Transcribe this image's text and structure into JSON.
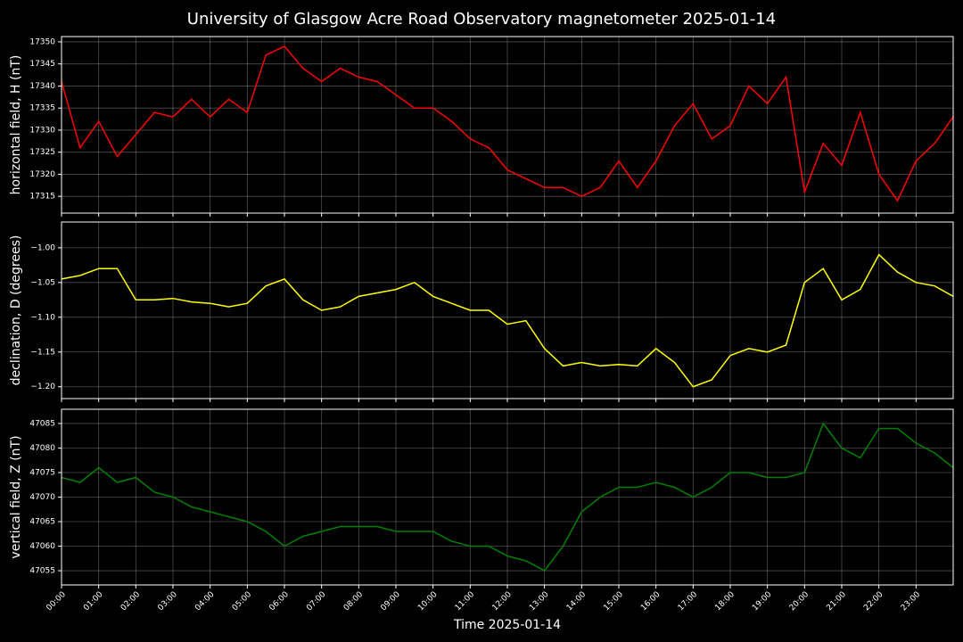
{
  "title": "University of Glasgow Acre Road Observatory magnetometer 2025-01-14",
  "chart_data": [
    {
      "type": "line",
      "ylabel": "horizontal field, H (nT)",
      "color": "#ff0000",
      "grid": true,
      "xlim": [
        0,
        24
      ],
      "ylim": [
        17311.2,
        17351.2
      ],
      "yticks": [
        17315,
        17320,
        17325,
        17330,
        17335,
        17340,
        17345,
        17350
      ],
      "x": [
        0,
        0.5,
        1,
        1.5,
        2,
        2.5,
        3,
        3.5,
        4,
        4.5,
        5,
        5.5,
        6,
        6.5,
        7,
        7.5,
        8,
        8.5,
        9,
        9.5,
        10,
        10.5,
        11,
        11.5,
        12,
        12.5,
        13,
        13.5,
        14,
        14.5,
        15,
        15.5,
        16,
        16.5,
        17,
        17.5,
        18,
        18.5,
        19,
        19.5,
        20,
        20.5,
        21,
        21.5,
        22,
        22.5,
        23,
        23.5,
        24
      ],
      "values": [
        17341,
        17326,
        17332,
        17324,
        17329,
        17334,
        17333,
        17337,
        17333,
        17337,
        17334,
        17347,
        17349,
        17344,
        17341,
        17344,
        17342,
        17341,
        17338,
        17335,
        17335,
        17332,
        17328,
        17326,
        17321,
        17319,
        17317,
        17317,
        17315,
        17317,
        17323,
        17317,
        17323,
        17331,
        17336,
        17328,
        17331,
        17340,
        17336,
        17342,
        17316,
        17327,
        17322,
        17334,
        17320,
        17314,
        17323,
        17327,
        17333
      ]
    },
    {
      "type": "line",
      "ylabel": "declination, D (degrees)",
      "color": "#ffff00",
      "grid": true,
      "xlim": [
        0,
        24
      ],
      "ylim": [
        -1.217,
        -0.963
      ],
      "yticks": [
        {
          "value": -1.2,
          "label": "−1.20"
        },
        {
          "value": -1.15,
          "label": "−1.15"
        },
        {
          "value": -1.1,
          "label": "−1.10"
        },
        {
          "value": -1.05,
          "label": "−1.05"
        },
        {
          "value": -1.0,
          "label": "−1.00"
        }
      ],
      "x": [
        0,
        0.5,
        1,
        1.5,
        2,
        2.5,
        3,
        3.5,
        4,
        4.5,
        5,
        5.5,
        6,
        6.5,
        7,
        7.5,
        8,
        8.5,
        9,
        9.5,
        10,
        10.5,
        11,
        11.5,
        12,
        12.5,
        13,
        13.5,
        14,
        14.5,
        15,
        15.5,
        16,
        16.5,
        17,
        17.5,
        18,
        18.5,
        19,
        19.5,
        20,
        20.5,
        21,
        21.5,
        22,
        22.5,
        23,
        23.5,
        24
      ],
      "values": [
        -1.045,
        -1.04,
        -1.03,
        -1.03,
        -1.075,
        -1.075,
        -1.073,
        -1.078,
        -1.08,
        -1.085,
        -1.08,
        -1.055,
        -1.045,
        -1.075,
        -1.09,
        -1.085,
        -1.07,
        -1.065,
        -1.06,
        -1.05,
        -1.07,
        -1.08,
        -1.09,
        -1.09,
        -1.11,
        -1.105,
        -1.145,
        -1.17,
        -1.165,
        -1.17,
        -1.168,
        -1.17,
        -1.145,
        -1.165,
        -1.2,
        -1.19,
        -1.155,
        -1.145,
        -1.15,
        -1.14,
        -1.05,
        -1.03,
        -1.075,
        -1.06,
        -1.01,
        -1.035,
        -1.05,
        -1.055,
        -1.07
      ]
    },
    {
      "type": "line",
      "ylabel": "vertical field, Z (nT)",
      "xlabel": "Time 2025-01-14",
      "color": "#008000",
      "grid": true,
      "xlim": [
        0,
        24
      ],
      "ylim": [
        47052.1,
        47087.9
      ],
      "yticks": [
        47055,
        47060,
        47065,
        47070,
        47075,
        47080,
        47085
      ],
      "xticks": [
        {
          "value": 0,
          "label": "00:00"
        },
        {
          "value": 1,
          "label": "01:00"
        },
        {
          "value": 2,
          "label": "02:00"
        },
        {
          "value": 3,
          "label": "03:00"
        },
        {
          "value": 4,
          "label": "04:00"
        },
        {
          "value": 5,
          "label": "05:00"
        },
        {
          "value": 6,
          "label": "06:00"
        },
        {
          "value": 7,
          "label": "07:00"
        },
        {
          "value": 8,
          "label": "08:00"
        },
        {
          "value": 9,
          "label": "09:00"
        },
        {
          "value": 10,
          "label": "10:00"
        },
        {
          "value": 11,
          "label": "11:00"
        },
        {
          "value": 12,
          "label": "12:00"
        },
        {
          "value": 13,
          "label": "13:00"
        },
        {
          "value": 14,
          "label": "14:00"
        },
        {
          "value": 15,
          "label": "15:00"
        },
        {
          "value": 16,
          "label": "16:00"
        },
        {
          "value": 17,
          "label": "17:00"
        },
        {
          "value": 18,
          "label": "18:00"
        },
        {
          "value": 19,
          "label": "19:00"
        },
        {
          "value": 20,
          "label": "20:00"
        },
        {
          "value": 21,
          "label": "21:00"
        },
        {
          "value": 22,
          "label": "22:00"
        },
        {
          "value": 23,
          "label": "23:00"
        }
      ],
      "x": [
        0,
        0.5,
        1,
        1.5,
        2,
        2.5,
        3,
        3.5,
        4,
        4.5,
        5,
        5.5,
        6,
        6.5,
        7,
        7.5,
        8,
        8.5,
        9,
        9.5,
        10,
        10.5,
        11,
        11.5,
        12,
        12.5,
        13,
        13.5,
        14,
        14.5,
        15,
        15.5,
        16,
        16.5,
        17,
        17.5,
        18,
        18.5,
        19,
        19.5,
        20,
        20.5,
        21,
        21.5,
        22,
        22.5,
        23,
        23.5,
        24
      ],
      "values": [
        47074,
        47073,
        47076,
        47073,
        47074,
        47071,
        47070,
        47068,
        47067,
        47066,
        47065,
        47063,
        47060,
        47062,
        47063,
        47064,
        47064,
        47064,
        47063,
        47063,
        47063,
        47061,
        47060,
        47060,
        47058,
        47057,
        47055,
        47060,
        47067,
        47070,
        47072,
        47072,
        47073,
        47072,
        47070,
        47072,
        47075,
        47075,
        47074,
        47074,
        47075,
        47085,
        47080,
        47078,
        47084,
        47084,
        47081,
        47079,
        47076
      ]
    }
  ]
}
